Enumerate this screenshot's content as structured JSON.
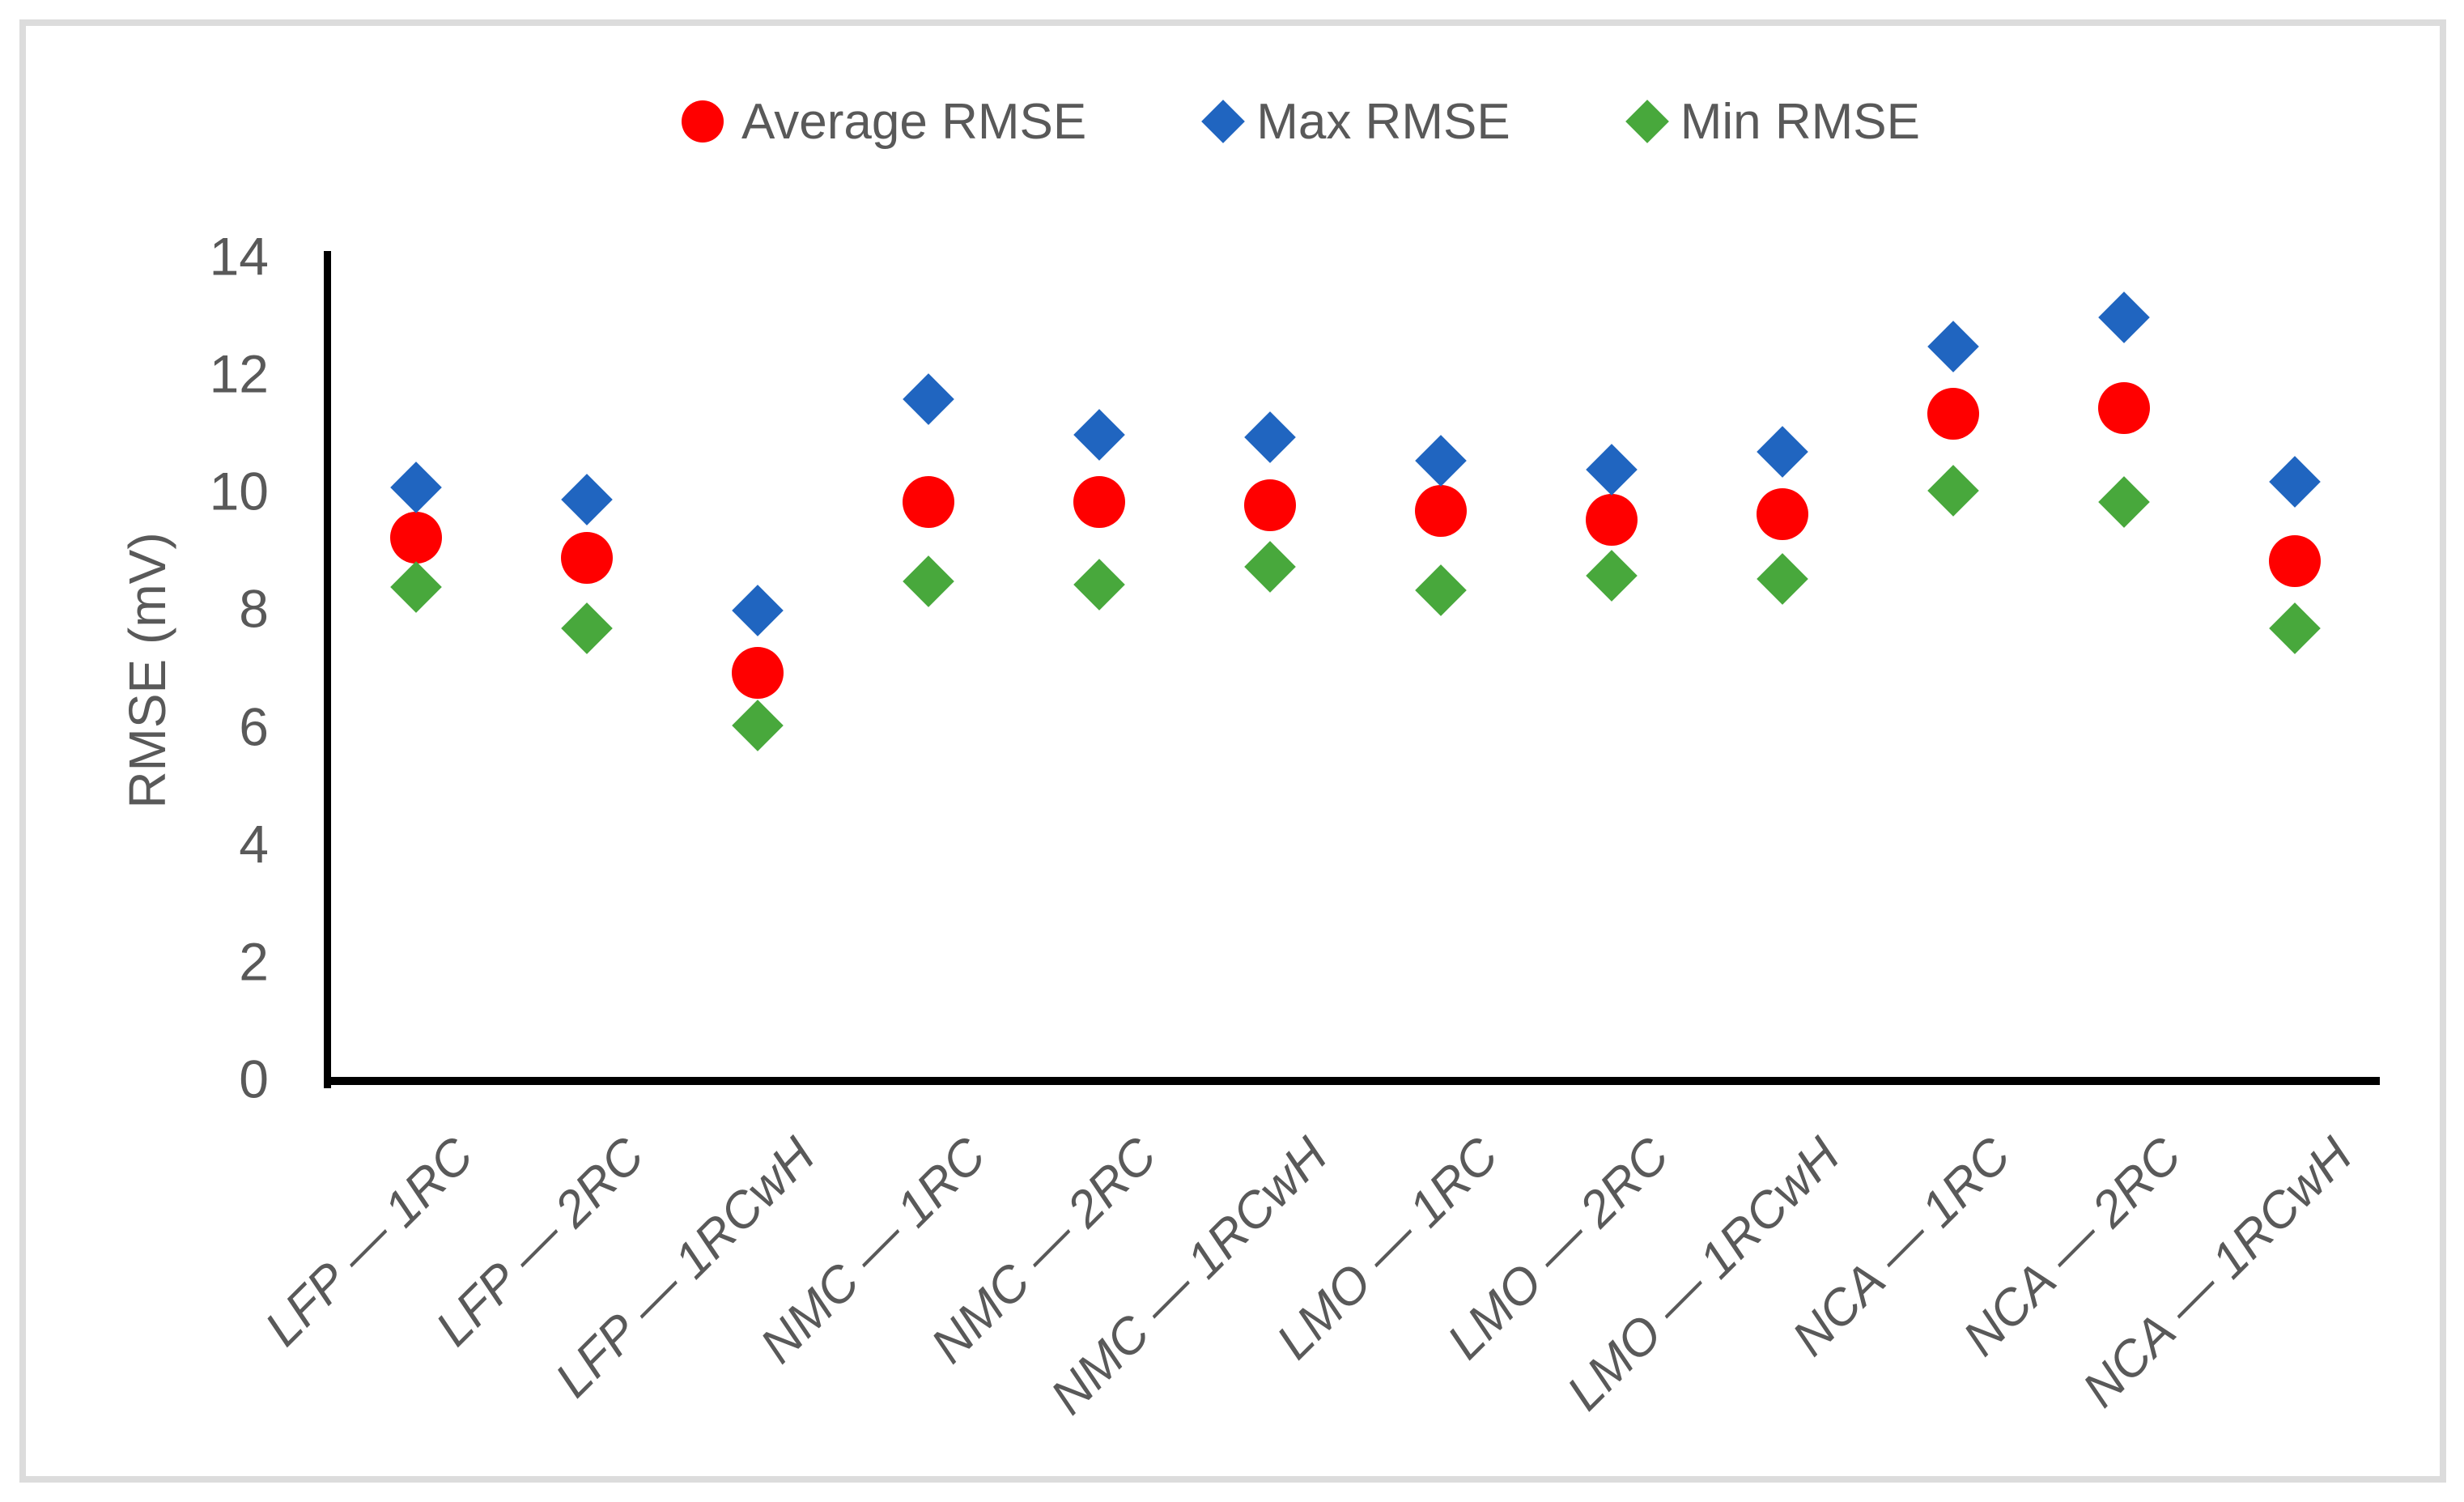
{
  "page": {
    "background": "#ffffff",
    "frame_border_color": "#dcdcdc"
  },
  "legend": {
    "items": [
      {
        "label": "Average RMSE",
        "shape": "circle",
        "color": "#ff0000"
      },
      {
        "label": "Max RMSE",
        "shape": "diamond",
        "color": "#2065c0"
      },
      {
        "label": "Min RMSE",
        "shape": "diamond",
        "color": "#48a83c"
      }
    ]
  },
  "chart_data": {
    "type": "scatter",
    "title": "",
    "xlabel": "",
    "ylabel": "RMSE (mV)",
    "ylim": [
      0,
      14
    ],
    "yticks": [
      0,
      2,
      4,
      6,
      8,
      10,
      12,
      14
    ],
    "grid": false,
    "legend_position": "top-center",
    "axis_color": "#000000",
    "tick_label_color": "#595959",
    "category_label_style": "italic, rotated 45°",
    "categories": [
      "LFP — 1RC",
      "LFP — 2RC",
      "LFP — 1RCwH",
      "NMC — 1RC",
      "NMC — 2RC",
      "NMC — 1RCwH",
      "LMO — 1RC",
      "LMO — 2RC",
      "LMO — 1RCwH",
      "NCA — 1RC",
      "NCA — 2RC",
      "NCA — 1RCwH"
    ],
    "series": [
      {
        "name": "Average RMSE",
        "marker": "circle",
        "color": "#ff0000",
        "values": [
          9.25,
          8.9,
          6.95,
          9.85,
          9.85,
          9.8,
          9.7,
          9.55,
          9.65,
          11.35,
          11.45,
          8.85
        ]
      },
      {
        "name": "Max RMSE",
        "marker": "diamond",
        "color": "#2065c0",
        "values": [
          10.1,
          9.9,
          8.0,
          11.6,
          11.0,
          10.95,
          10.55,
          10.4,
          10.7,
          12.5,
          13.0,
          10.2
        ]
      },
      {
        "name": "Min RMSE",
        "marker": "diamond",
        "color": "#48a83c",
        "values": [
          8.4,
          7.7,
          6.05,
          8.5,
          8.45,
          8.75,
          8.35,
          8.6,
          8.55,
          10.05,
          9.85,
          7.7
        ]
      }
    ]
  }
}
